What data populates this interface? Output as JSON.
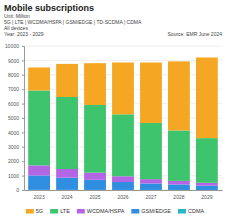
{
  "chart_data": {
    "type": "bar",
    "stacked": true,
    "grid": true,
    "legend": "bottom",
    "title": "Mobile subscriptions",
    "subtitle": [
      "Unit: Million",
      "5G | LTE | WCDMA/HSPA | GSM/EDGE | TD-SCDMA | CDMA",
      "All devices",
      "Year: 2023 - 2029"
    ],
    "annotations": [
      "Source: EMR June 2024"
    ],
    "categories": [
      "2023",
      "2024",
      "2025",
      "2026",
      "2027",
      "2028",
      "2029"
    ],
    "series": [
      {
        "name": "CDMA",
        "color": "#29b6c8",
        "values": [
          10,
          8,
          6,
          5,
          4,
          3,
          2
        ]
      },
      {
        "name": "GSM/EDGE",
        "color": "#2f8ee0",
        "values": [
          1000,
          850,
          700,
          550,
          450,
          380,
          300
        ]
      },
      {
        "name": "WCDMA/HSPA",
        "color": "#b366e3",
        "values": [
          700,
          600,
          500,
          400,
          300,
          250,
          200
        ]
      },
      {
        "name": "LTE",
        "color": "#3ec46d",
        "values": [
          5200,
          5000,
          4700,
          4300,
          3900,
          3500,
          3100
        ]
      },
      {
        "name": "5G",
        "color": "#f5a623",
        "values": [
          1600,
          2300,
          2900,
          3600,
          4200,
          4800,
          5600
        ]
      }
    ],
    "ylim": [
      0,
      10000
    ],
    "yticks": [
      0,
      1000,
      2000,
      3000,
      4000,
      5000,
      6000,
      7000,
      8000,
      9000,
      10000
    ]
  }
}
